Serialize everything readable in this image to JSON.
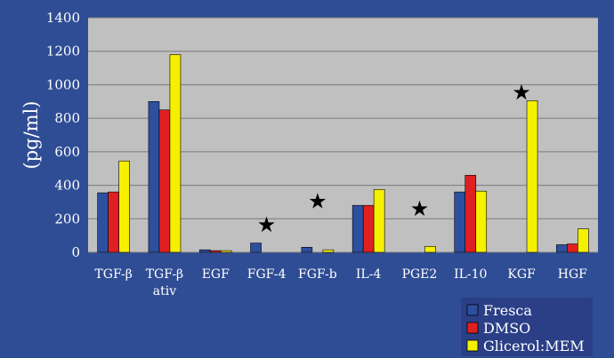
{
  "chart_data": {
    "type": "bar",
    "title": "",
    "xlabel": "",
    "ylabel": "(pg/ml)",
    "ylim": [
      0,
      1400
    ],
    "yticks": [
      "0",
      "200",
      "400",
      "600",
      "800",
      "1000",
      "1200",
      "1400"
    ],
    "grid": true,
    "legend_position": "bottom-right",
    "categories": [
      "TGF-β",
      "TGF-β ativ",
      "EGF",
      "FGF-4",
      "FGF-b",
      "IL-4",
      "PGE2",
      "IL-10",
      "KGF",
      "HGF"
    ],
    "category_lines": [
      [
        "TGF-β"
      ],
      [
        "TGF-β",
        "ativ"
      ],
      [
        "EGF"
      ],
      [
        "FGF-4"
      ],
      [
        "FGF-b"
      ],
      [
        "IL-4"
      ],
      [
        "PGE2"
      ],
      [
        "IL-10"
      ],
      [
        "KGF"
      ],
      [
        "HGF"
      ]
    ],
    "series": [
      {
        "name": "Fresca",
        "color": "#2c4fa0",
        "values": [
          355,
          900,
          15,
          55,
          30,
          280,
          0,
          360,
          0,
          45
        ]
      },
      {
        "name": "DMSO",
        "color": "#e02020",
        "values": [
          360,
          850,
          10,
          0,
          0,
          280,
          0,
          460,
          0,
          50
        ]
      },
      {
        "name": "Glicerol:MEM",
        "color": "#f5f000",
        "values": [
          545,
          1180,
          10,
          0,
          15,
          375,
          35,
          365,
          905,
          140
        ]
      }
    ],
    "annotations": [
      {
        "category": "FGF-4",
        "symbol": "★",
        "y": 165
      },
      {
        "category": "FGF-b",
        "symbol": "★",
        "y": 305
      },
      {
        "category": "PGE2",
        "symbol": "★",
        "y": 260
      },
      {
        "category": "KGF",
        "symbol": "★",
        "y": 955
      }
    ]
  }
}
